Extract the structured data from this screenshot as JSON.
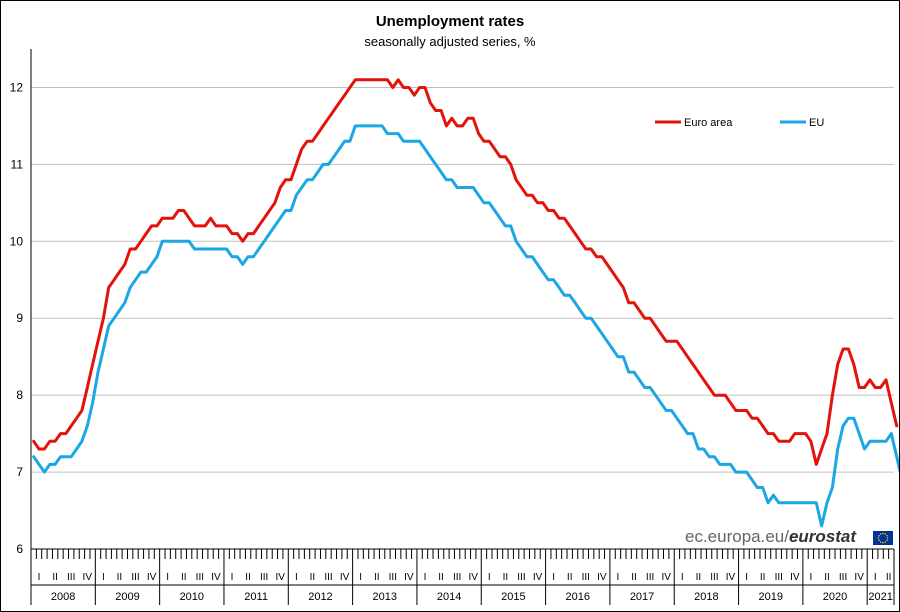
{
  "chart_data": {
    "type": "line",
    "title": "Unemployment rates",
    "subtitle": "seasonally adjusted series, %",
    "ylim": [
      6,
      12.5
    ],
    "yticks": [
      6,
      7,
      8,
      9,
      10,
      11,
      12
    ],
    "grid": true,
    "legend_position": "top-right",
    "years": [
      "2008",
      "2009",
      "2010",
      "2011",
      "2012",
      "2013",
      "2014",
      "2015",
      "2016",
      "2017",
      "2018",
      "2019",
      "2020",
      "2021"
    ],
    "quarters": [
      "I",
      "II",
      "III",
      "IV"
    ],
    "start_month": "2008-01",
    "end_month": "2021-05",
    "series": [
      {
        "name": "Euro area",
        "color": "#e3120b",
        "values": [
          7.4,
          7.3,
          7.3,
          7.4,
          7.4,
          7.5,
          7.5,
          7.6,
          7.7,
          7.8,
          8.1,
          8.4,
          8.7,
          9.0,
          9.4,
          9.5,
          9.6,
          9.7,
          9.9,
          9.9,
          10.0,
          10.1,
          10.2,
          10.2,
          10.3,
          10.3,
          10.3,
          10.4,
          10.4,
          10.3,
          10.2,
          10.2,
          10.2,
          10.3,
          10.2,
          10.2,
          10.2,
          10.1,
          10.1,
          10.0,
          10.1,
          10.1,
          10.2,
          10.3,
          10.4,
          10.5,
          10.7,
          10.8,
          10.8,
          11.0,
          11.2,
          11.3,
          11.3,
          11.4,
          11.5,
          11.6,
          11.7,
          11.8,
          11.9,
          12.0,
          12.1,
          12.1,
          12.1,
          12.1,
          12.1,
          12.1,
          12.1,
          12.0,
          12.1,
          12.0,
          12.0,
          11.9,
          12.0,
          12.0,
          11.8,
          11.7,
          11.7,
          11.5,
          11.6,
          11.5,
          11.5,
          11.6,
          11.6,
          11.4,
          11.3,
          11.3,
          11.2,
          11.1,
          11.1,
          11.0,
          10.8,
          10.7,
          10.6,
          10.6,
          10.5,
          10.5,
          10.4,
          10.4,
          10.3,
          10.3,
          10.2,
          10.1,
          10.0,
          9.9,
          9.9,
          9.8,
          9.8,
          9.7,
          9.6,
          9.5,
          9.4,
          9.2,
          9.2,
          9.1,
          9.0,
          9.0,
          8.9,
          8.8,
          8.7,
          8.7,
          8.7,
          8.6,
          8.5,
          8.4,
          8.3,
          8.2,
          8.1,
          8.0,
          8.0,
          8.0,
          7.9,
          7.8,
          7.8,
          7.8,
          7.7,
          7.7,
          7.6,
          7.5,
          7.5,
          7.4,
          7.4,
          7.4,
          7.5,
          7.5,
          7.5,
          7.4,
          7.1,
          7.3,
          7.5,
          8.0,
          8.4,
          8.6,
          8.6,
          8.4,
          8.1,
          8.1,
          8.2,
          8.1,
          8.1,
          8.2,
          7.9,
          7.6
        ]
      },
      {
        "name": "EU",
        "color": "#1ba6e4",
        "values": [
          7.2,
          7.1,
          7.0,
          7.1,
          7.1,
          7.2,
          7.2,
          7.2,
          7.3,
          7.4,
          7.6,
          7.9,
          8.3,
          8.6,
          8.9,
          9.0,
          9.1,
          9.2,
          9.4,
          9.5,
          9.6,
          9.6,
          9.7,
          9.8,
          10.0,
          10.0,
          10.0,
          10.0,
          10.0,
          10.0,
          9.9,
          9.9,
          9.9,
          9.9,
          9.9,
          9.9,
          9.9,
          9.8,
          9.8,
          9.7,
          9.8,
          9.8,
          9.9,
          10.0,
          10.1,
          10.2,
          10.3,
          10.4,
          10.4,
          10.6,
          10.7,
          10.8,
          10.8,
          10.9,
          11.0,
          11.0,
          11.1,
          11.2,
          11.3,
          11.3,
          11.5,
          11.5,
          11.5,
          11.5,
          11.5,
          11.5,
          11.4,
          11.4,
          11.4,
          11.3,
          11.3,
          11.3,
          11.3,
          11.2,
          11.1,
          11.0,
          10.9,
          10.8,
          10.8,
          10.7,
          10.7,
          10.7,
          10.7,
          10.6,
          10.5,
          10.5,
          10.4,
          10.3,
          10.2,
          10.2,
          10.0,
          9.9,
          9.8,
          9.8,
          9.7,
          9.6,
          9.5,
          9.5,
          9.4,
          9.3,
          9.3,
          9.2,
          9.1,
          9.0,
          9.0,
          8.9,
          8.8,
          8.7,
          8.6,
          8.5,
          8.5,
          8.3,
          8.3,
          8.2,
          8.1,
          8.1,
          8.0,
          7.9,
          7.8,
          7.8,
          7.7,
          7.6,
          7.5,
          7.5,
          7.3,
          7.3,
          7.2,
          7.2,
          7.1,
          7.1,
          7.1,
          7.0,
          7.0,
          7.0,
          6.9,
          6.8,
          6.8,
          6.6,
          6.7,
          6.6,
          6.6,
          6.6,
          6.6,
          6.6,
          6.6,
          6.6,
          6.6,
          6.3,
          6.6,
          6.8,
          7.3,
          7.6,
          7.7,
          7.7,
          7.5,
          7.3,
          7.4,
          7.4,
          7.4,
          7.4,
          7.5,
          7.2,
          6.9
        ]
      }
    ]
  },
  "credit": {
    "light": "ec.europa.eu/",
    "bold": "eurostat"
  },
  "colors": {
    "grid": "#c0c0c0",
    "axis": "#000000",
    "flag": "#003399",
    "flag_stars": "#ffcc00"
  }
}
